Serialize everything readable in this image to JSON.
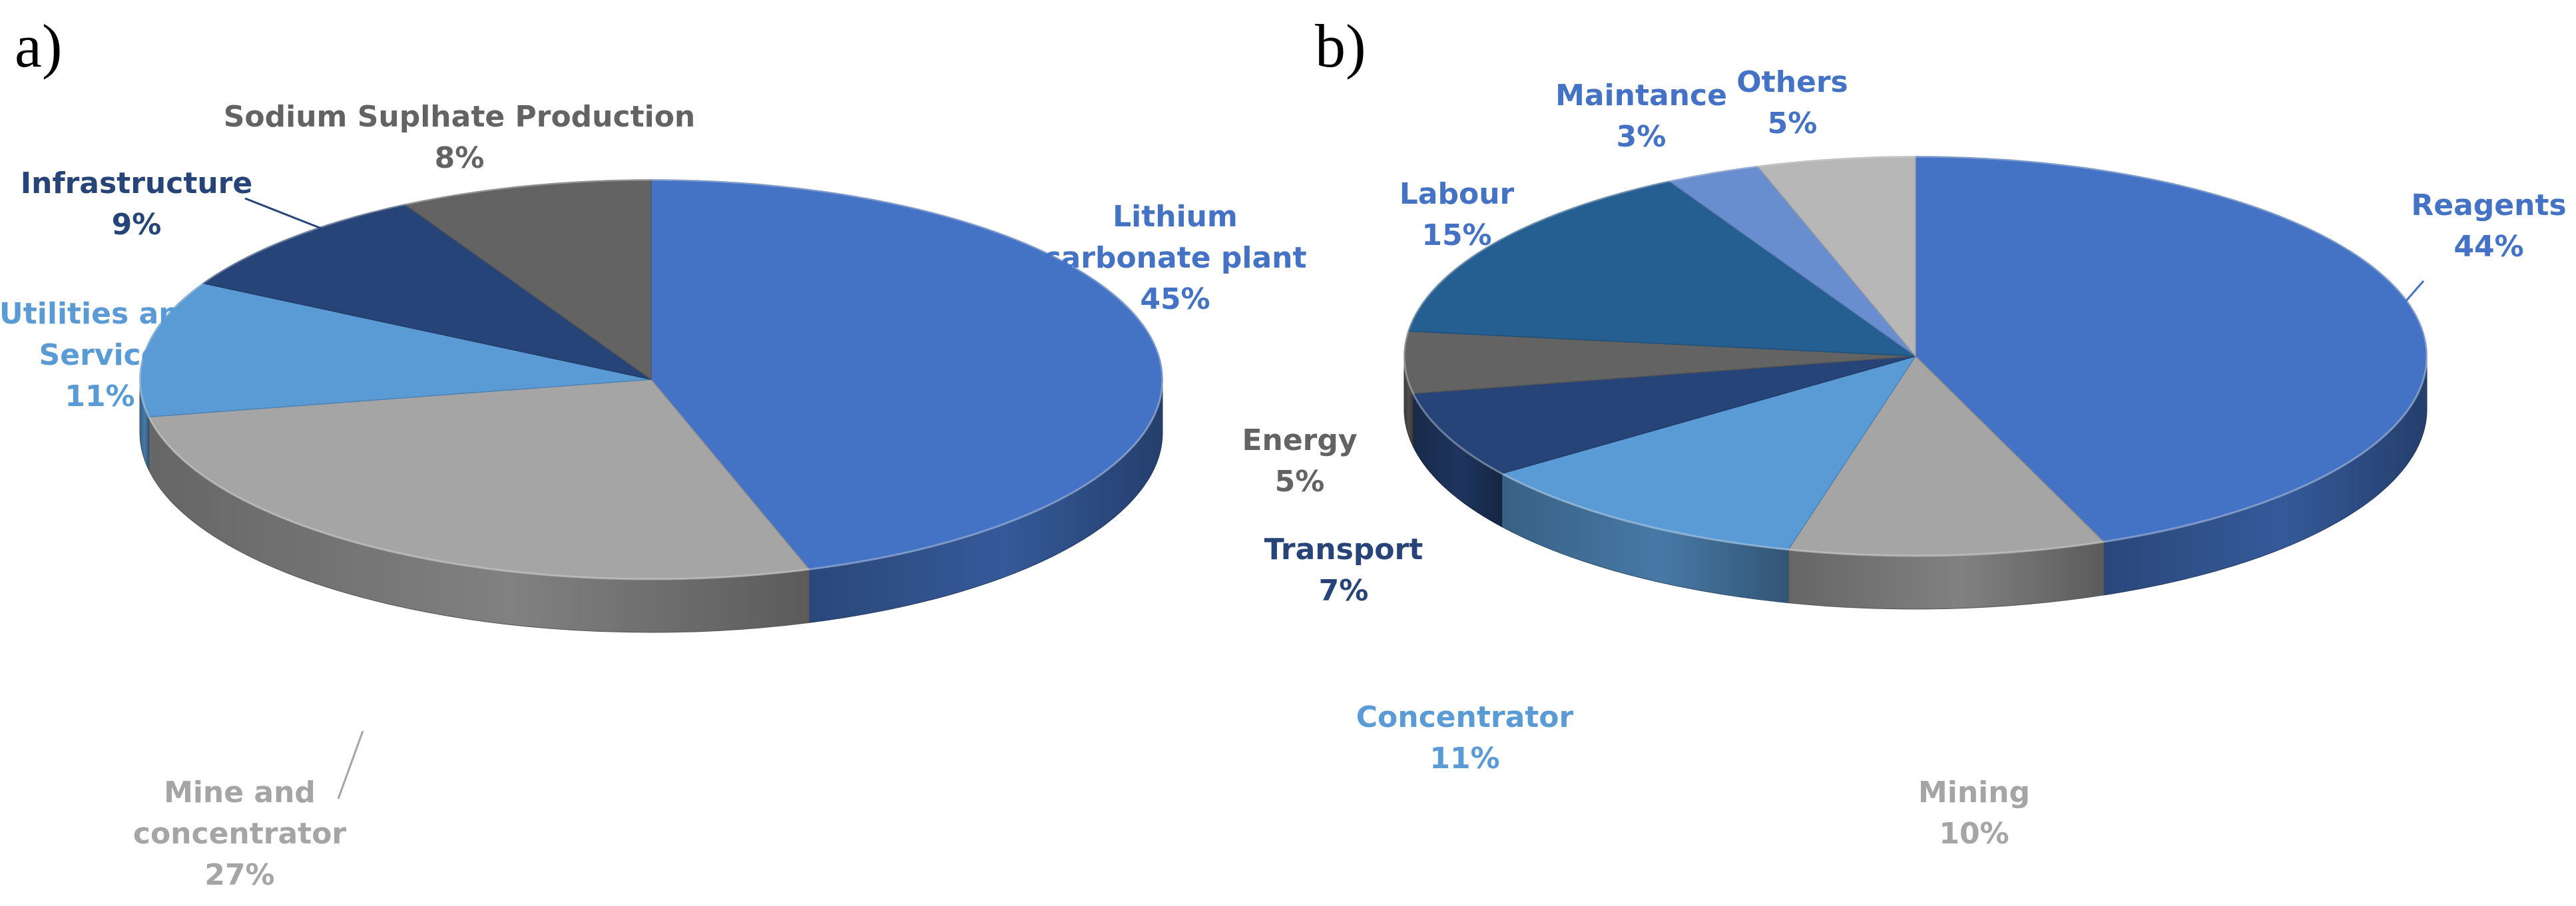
{
  "chart_data": [
    {
      "type": "pie",
      "panel_label": "a)",
      "title": "",
      "slices": [
        {
          "label_lines": [
            "Lithium",
            "carbonate plant"
          ],
          "value": 45,
          "value_text": "45%",
          "color": "#4472C4",
          "label_color": "#4472C4"
        },
        {
          "label_lines": [
            "Mine and",
            "concentrator"
          ],
          "value": 27,
          "value_text": "27%",
          "color": "#A5A5A5",
          "label_color": "#A5A5A5"
        },
        {
          "label_lines": [
            "Utilities and",
            "Service"
          ],
          "value": 11,
          "value_text": "11%",
          "color": "#5B9BD5",
          "label_color": "#5B9BD5"
        },
        {
          "label_lines": [
            "Infrastructure"
          ],
          "value": 9,
          "value_text": "9%",
          "color": "#264478",
          "label_color": "#264478"
        },
        {
          "label_lines": [
            "Sodium Suplhate Production"
          ],
          "value": 8,
          "value_text": "8%",
          "color": "#636363",
          "label_color": "#636363"
        }
      ]
    },
    {
      "type": "pie",
      "panel_label": "b)",
      "title": "",
      "slices": [
        {
          "label_lines": [
            "Reagents"
          ],
          "value": 44,
          "value_text": "44%",
          "color": "#4472C4",
          "label_color": "#4472C4"
        },
        {
          "label_lines": [
            "Mining"
          ],
          "value": 10,
          "value_text": "10%",
          "color": "#A5A5A5",
          "label_color": "#A5A5A5"
        },
        {
          "label_lines": [
            "Concentrator"
          ],
          "value": 11,
          "value_text": "11%",
          "color": "#5B9BD5",
          "label_color": "#5B9BD5"
        },
        {
          "label_lines": [
            "Transport"
          ],
          "value": 7,
          "value_text": "7%",
          "color": "#264478",
          "label_color": "#264478"
        },
        {
          "label_lines": [
            "Energy"
          ],
          "value": 5,
          "value_text": "5%",
          "color": "#636363",
          "label_color": "#636363"
        },
        {
          "label_lines": [
            "Labour"
          ],
          "value": 15,
          "value_text": "15%",
          "color": "#255E91",
          "label_color": "#4472C4"
        },
        {
          "label_lines": [
            "Maintance"
          ],
          "value": 3,
          "value_text": "3%",
          "color": "#698ED0",
          "label_color": "#4472C4"
        },
        {
          "label_lines": [
            "Others"
          ],
          "value": 5,
          "value_text": "5%",
          "color": "#B7B7B7",
          "label_color": "#4472C4"
        }
      ]
    }
  ]
}
